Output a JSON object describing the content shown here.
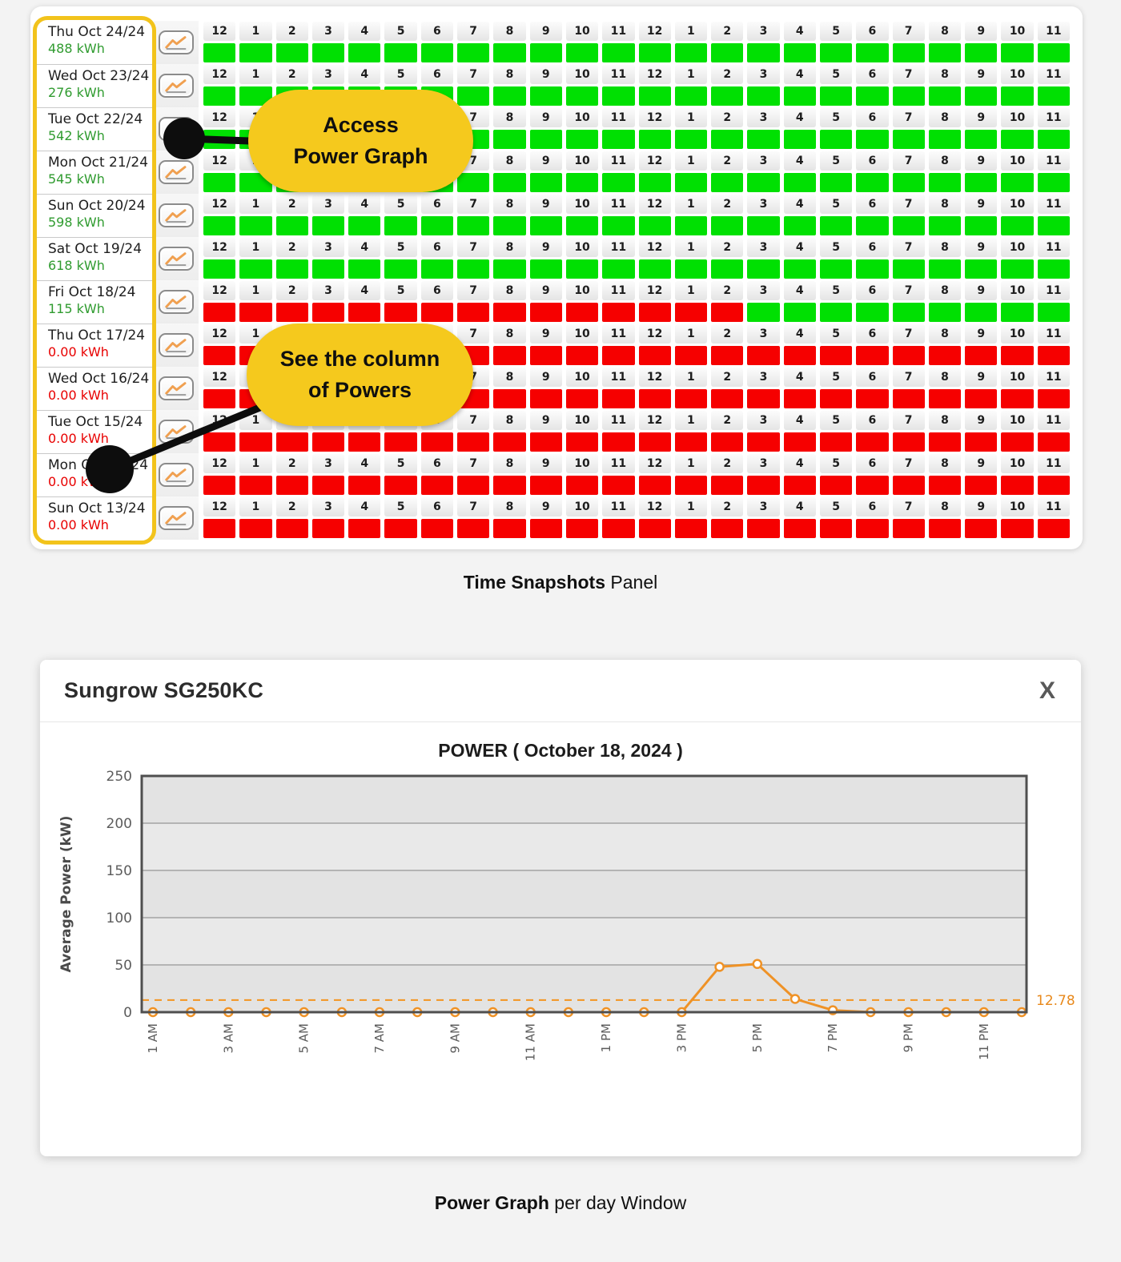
{
  "captions": {
    "top_bold": "Time Snapshots",
    "top_rest": " Panel",
    "bottom_bold": "Power Graph",
    "bottom_rest": " per day Window"
  },
  "callouts": {
    "access": {
      "line1": "Access",
      "line2": "Power Graph"
    },
    "powers": {
      "line1": "See the column",
      "line2": "of Powers"
    }
  },
  "snapshots": {
    "hour_labels": [
      "12",
      "1",
      "2",
      "3",
      "4",
      "5",
      "6",
      "7",
      "8",
      "9",
      "10",
      "11",
      "12",
      "1",
      "2",
      "3",
      "4",
      "5",
      "6",
      "7",
      "8",
      "9",
      "10",
      "11"
    ],
    "colors": {
      "ok_cell": "#00e002",
      "missing_cell": "#f60000",
      "energy_ok_text": "#2f9b2f",
      "energy_missing_text": "#e80000",
      "highlight_border": "#f2c31b",
      "callout_bg": "#f5c91d"
    },
    "rows": [
      {
        "date": "Thu Oct 24/24",
        "energy": "488 kWh",
        "status": "ok",
        "hours": "GGGGGGGGGGGGGGGGGGGGGGGG"
      },
      {
        "date": "Wed Oct 23/24",
        "energy": "276 kWh",
        "status": "ok",
        "hours": "GGGGGGGGGGGGGGGGGGGGGGGG"
      },
      {
        "date": "Tue Oct 22/24",
        "energy": "542 kWh",
        "status": "ok",
        "hours": "GGGGGGGGGGGGGGGGGGGGGGGG"
      },
      {
        "date": "Mon Oct 21/24",
        "energy": "545 kWh",
        "status": "ok",
        "hours": "GGGGGGGGGGGGGGGGGGGGGGGG"
      },
      {
        "date": "Sun Oct 20/24",
        "energy": "598 kWh",
        "status": "ok",
        "hours": "GGGGGGGGGGGGGGGGGGGGGGGG"
      },
      {
        "date": "Sat Oct 19/24",
        "energy": "618 kWh",
        "status": "ok",
        "hours": "GGGGGGGGGGGGGGGGGGGGGGGG"
      },
      {
        "date": "Fri Oct 18/24",
        "energy": "115 kWh",
        "status": "ok",
        "hours": "RRRRRRRRRRRRRRRGGGGGGGGG"
      },
      {
        "date": "Thu Oct 17/24",
        "energy": "0.00 kWh",
        "status": "missing",
        "hours": "RRRRRRRRRRRRRRRRRRRRRRRR"
      },
      {
        "date": "Wed Oct 16/24",
        "energy": "0.00 kWh",
        "status": "missing",
        "hours": "RRRRRRRRRRRRRRRRRRRRRRRR"
      },
      {
        "date": "Tue Oct 15/24",
        "energy": "0.00 kWh",
        "status": "missing",
        "hours": "RRRRRRRRRRRRRRRRRRRRRRRR"
      },
      {
        "date": "Mon Oct 14/24",
        "energy": "0.00 kWh",
        "status": "missing",
        "hours": "RRRRRRRRRRRRRRRRRRRRRRRR"
      },
      {
        "date": "Sun Oct 13/24",
        "energy": "0.00 kWh",
        "status": "missing",
        "hours": "RRRRRRRRRRRRRRRRRRRRRRRR"
      }
    ]
  },
  "modal": {
    "title": "Sungrow SG250KC",
    "close_label": "X"
  },
  "chart_data": {
    "type": "line",
    "title": "POWER ( October 18, 2024 )",
    "xlabel": "",
    "ylabel": "Average Power (kW)",
    "ylim": [
      0,
      250
    ],
    "yticks": [
      0,
      50,
      100,
      150,
      200,
      250
    ],
    "x": [
      "1 AM",
      "2 AM",
      "3 AM",
      "4 AM",
      "5 AM",
      "6 AM",
      "7 AM",
      "8 AM",
      "9 AM",
      "10 AM",
      "11 AM",
      "12 PM",
      "1 PM",
      "2 PM",
      "3 PM",
      "4 PM",
      "5 PM",
      "6 PM",
      "7 PM",
      "8 PM",
      "9 PM",
      "10 PM",
      "11 PM",
      "12 AM"
    ],
    "x_label_every": 2,
    "values": [
      0,
      0,
      0,
      0,
      0,
      0,
      0,
      0,
      0,
      0,
      0,
      0,
      0,
      0,
      0,
      48,
      51,
      14,
      2,
      0,
      0,
      0,
      0,
      0
    ],
    "average_line": {
      "value": 12.78,
      "label": "12.78"
    },
    "grid": true,
    "legend_position": "none",
    "line_color": "#ef9226",
    "marker_fill": "#ffffff",
    "plot_bg": "#e4e4e4",
    "grid_color": "#b4b4b4"
  }
}
